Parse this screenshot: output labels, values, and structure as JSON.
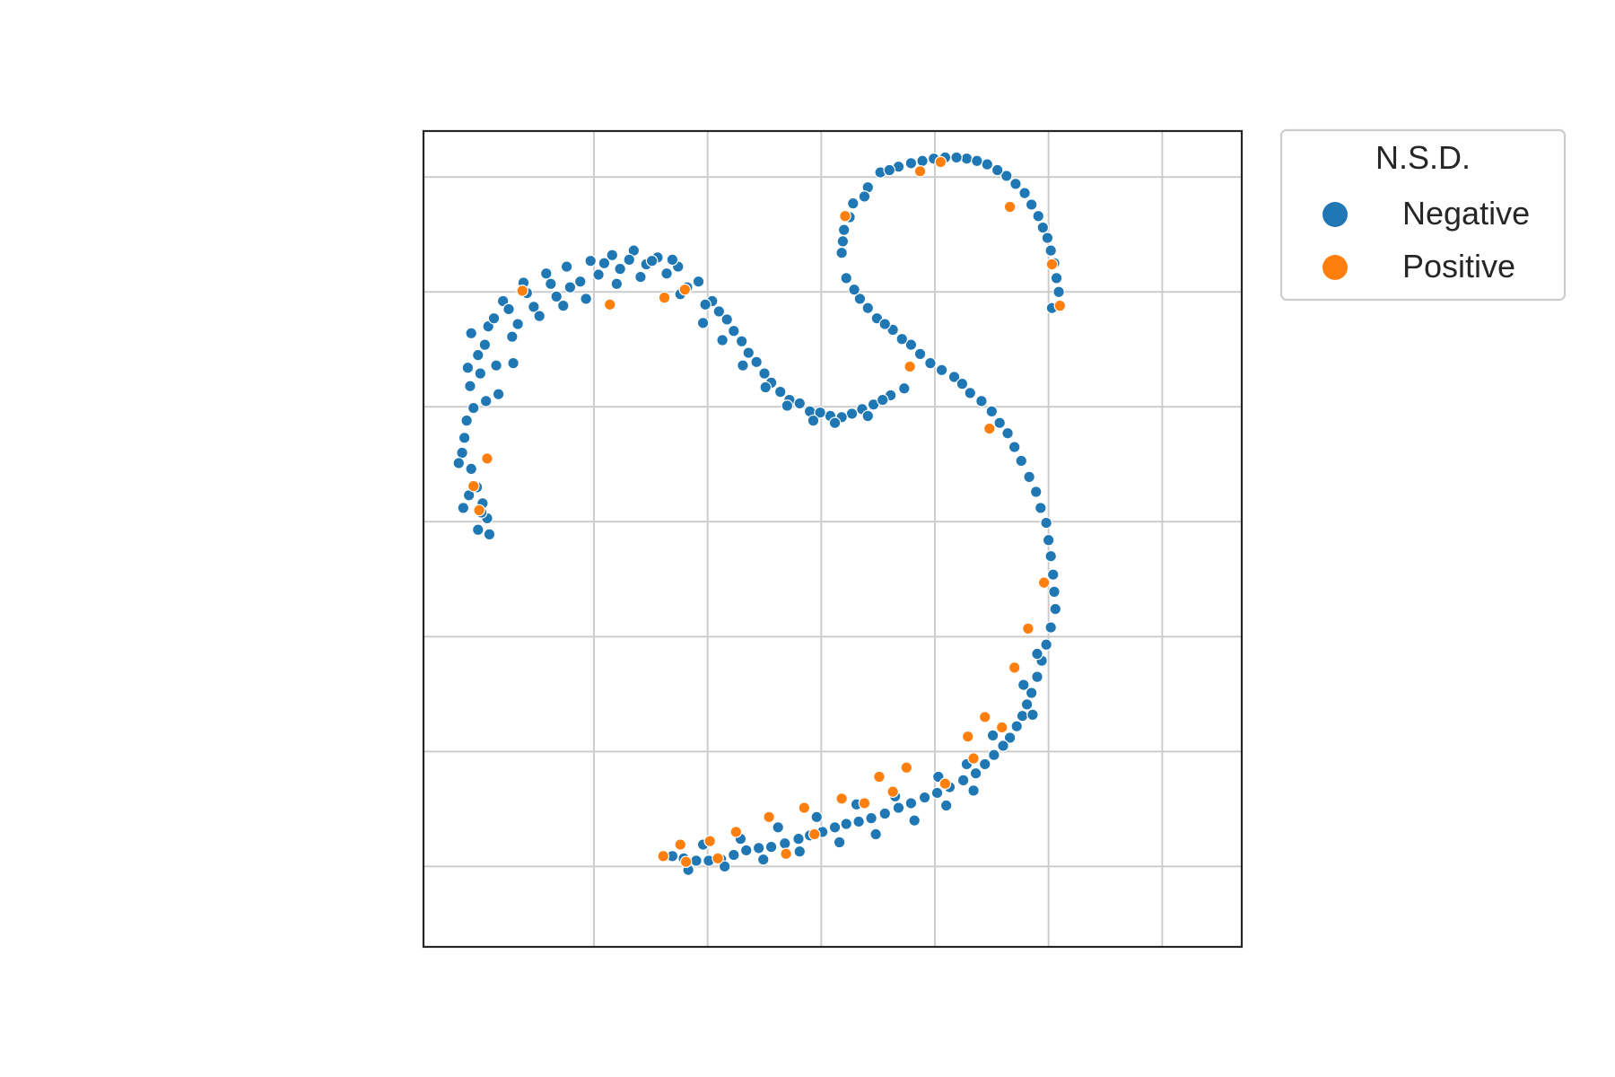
{
  "chart_data": {
    "type": "scatter",
    "title": "",
    "xlabel": "",
    "ylabel": "",
    "xlim": [
      -35,
      37
    ],
    "ylim": [
      -37,
      34
    ],
    "grid": true,
    "axis_tick_labels": false,
    "legend": {
      "title": "N.S.D.",
      "placement": "outside-top-right",
      "entries": [
        {
          "label": "Negative",
          "color": "#1f77b4"
        },
        {
          "label": "Positive",
          "color": "#ff7f0e"
        }
      ]
    },
    "series": [
      {
        "name": "Negative",
        "color": "#1f77b4",
        "points": [
          [
            -31.6,
            6.0
          ],
          [
            -31.2,
            8.8
          ],
          [
            -30.9,
            11.8
          ],
          [
            -30.2,
            14.5
          ],
          [
            -29.3,
            17.0
          ],
          [
            -28.0,
            19.2
          ],
          [
            -26.2,
            20.8
          ],
          [
            -24.2,
            21.6
          ],
          [
            -22.4,
            22.2
          ],
          [
            -20.3,
            22.7
          ],
          [
            -18.4,
            23.2
          ],
          [
            -16.5,
            23.6
          ],
          [
            -14.4,
            23.0
          ],
          [
            -12.6,
            22.2
          ],
          [
            -10.8,
            20.9
          ],
          [
            -9.6,
            19.2
          ],
          [
            -8.3,
            17.6
          ],
          [
            -7.0,
            15.7
          ],
          [
            -5.7,
            13.9
          ],
          [
            -4.4,
            12.1
          ],
          [
            -2.8,
            10.6
          ],
          [
            -1.0,
            9.6
          ],
          [
            0.8,
            9.2
          ],
          [
            2.7,
            9.4
          ],
          [
            4.6,
            10.2
          ],
          [
            6.1,
            11.0
          ],
          [
            7.3,
            11.6
          ],
          [
            -30.8,
            4.6
          ],
          [
            -30.3,
            3.0
          ],
          [
            -29.8,
            1.6
          ],
          [
            -29.4,
            0.3
          ],
          [
            -29.2,
            -1.1
          ],
          [
            -28.8,
            17.7
          ],
          [
            -27.5,
            18.5
          ],
          [
            -25.9,
            19.9
          ],
          [
            -23.8,
            20.7
          ],
          [
            -22.1,
            20.4
          ],
          [
            -19.6,
            21.5
          ],
          [
            -17.7,
            22.0
          ],
          [
            -15.4,
            22.4
          ],
          [
            -13.6,
            21.6
          ],
          [
            -11.8,
            20.4
          ],
          [
            -10.2,
            18.9
          ],
          [
            -9.0,
            18.3
          ],
          [
            -7.7,
            16.6
          ],
          [
            -6.4,
            14.7
          ],
          [
            -5.0,
            12.9
          ],
          [
            -3.6,
            11.3
          ],
          [
            -1.9,
            10.3
          ],
          [
            -0.1,
            9.5
          ],
          [
            1.8,
            9.1
          ],
          [
            3.6,
            9.8
          ],
          [
            5.4,
            10.6
          ],
          [
            -31.4,
            7.3
          ],
          [
            -30.6,
            9.9
          ],
          [
            -30.0,
            12.9
          ],
          [
            -29.6,
            15.4
          ],
          [
            -31.9,
            5.1
          ],
          [
            -31.0,
            2.3
          ],
          [
            -29.9,
            0.8
          ],
          [
            -28.6,
            13.6
          ],
          [
            -27.2,
            16.1
          ],
          [
            -25.3,
            18.7
          ],
          [
            -23.3,
            19.6
          ],
          [
            -21.2,
            20.9
          ],
          [
            -19.1,
            22.5
          ],
          [
            -16.9,
            22.8
          ],
          [
            -14.9,
            22.7
          ],
          [
            -13.1,
            22.8
          ],
          [
            5.2,
            30.4
          ],
          [
            4.1,
            29.1
          ],
          [
            2.8,
            27.7
          ],
          [
            2.0,
            25.4
          ],
          [
            1.8,
            23.4
          ],
          [
            2.2,
            21.2
          ],
          [
            3.4,
            19.4
          ],
          [
            4.9,
            17.7
          ],
          [
            6.3,
            16.7
          ],
          [
            7.9,
            15.4
          ],
          [
            9.6,
            13.8
          ],
          [
            11.7,
            12.6
          ],
          [
            13.1,
            11.2
          ],
          [
            15.0,
            9.6
          ],
          [
            16.4,
            7.7
          ],
          [
            17.6,
            5.3
          ],
          [
            18.9,
            2.6
          ],
          [
            19.8,
            -0.1
          ],
          [
            20.2,
            -3.0
          ],
          [
            20.5,
            -6.1
          ],
          [
            20.2,
            -9.2
          ],
          [
            19.4,
            -12.1
          ],
          [
            18.5,
            -14.9
          ],
          [
            17.7,
            -16.9
          ],
          [
            16.6,
            -18.8
          ],
          [
            15.2,
            -20.3
          ],
          [
            13.6,
            -21.9
          ],
          [
            11.3,
            -23.1
          ],
          [
            9.1,
            -24.0
          ],
          [
            6.8,
            -24.9
          ],
          [
            4.4,
            -25.8
          ],
          [
            2.2,
            -26.3
          ],
          [
            0.1,
            -27.0
          ],
          [
            -2.0,
            -27.6
          ],
          [
            -4.4,
            -28.3
          ],
          [
            -6.6,
            -28.6
          ],
          [
            -8.8,
            -29.4
          ],
          [
            -11.0,
            -29.5
          ],
          [
            -13.1,
            -29.1
          ],
          [
            6.8,
            30.9
          ],
          [
            8.9,
            31.4
          ],
          [
            10.9,
            31.7
          ],
          [
            12.8,
            31.6
          ],
          [
            14.6,
            31.1
          ],
          [
            16.3,
            30.1
          ],
          [
            17.9,
            28.6
          ],
          [
            19.1,
            26.6
          ],
          [
            19.9,
            24.7
          ],
          [
            20.5,
            22.5
          ],
          [
            20.9,
            20.0
          ],
          [
            20.3,
            18.6
          ],
          [
            3.8,
            28.3
          ],
          [
            2.5,
            26.5
          ],
          [
            1.9,
            24.4
          ],
          [
            2.9,
            20.2
          ],
          [
            4.1,
            18.6
          ],
          [
            5.6,
            17.2
          ],
          [
            7.1,
            15.9
          ],
          [
            8.7,
            14.6
          ],
          [
            10.6,
            13.2
          ],
          [
            12.4,
            12.0
          ],
          [
            14.1,
            10.5
          ],
          [
            15.7,
            8.6
          ],
          [
            17.0,
            6.5
          ],
          [
            18.3,
            3.9
          ],
          [
            19.3,
            1.2
          ],
          [
            20.0,
            -1.6
          ],
          [
            20.4,
            -4.6
          ],
          [
            20.6,
            -7.6
          ],
          [
            19.8,
            -10.7
          ],
          [
            19.0,
            -13.5
          ],
          [
            18.1,
            -15.9
          ],
          [
            17.2,
            -17.8
          ],
          [
            16.0,
            -19.5
          ],
          [
            14.4,
            -21.1
          ],
          [
            12.5,
            -22.5
          ],
          [
            10.2,
            -23.6
          ],
          [
            7.9,
            -24.5
          ],
          [
            5.6,
            -25.4
          ],
          [
            3.3,
            -26.1
          ],
          [
            1.2,
            -26.6
          ],
          [
            -1.0,
            -27.3
          ],
          [
            -3.2,
            -28.0
          ],
          [
            -5.5,
            -28.4
          ],
          [
            -7.7,
            -29.0
          ],
          [
            -9.9,
            -29.5
          ],
          [
            -12.1,
            -29.3
          ],
          [
            6.0,
            30.6
          ],
          [
            7.9,
            31.2
          ],
          [
            9.9,
            31.6
          ],
          [
            11.9,
            31.7
          ],
          [
            13.7,
            31.4
          ],
          [
            15.5,
            30.6
          ],
          [
            17.1,
            29.4
          ],
          [
            18.5,
            27.6
          ],
          [
            19.5,
            25.6
          ],
          [
            20.2,
            23.6
          ],
          [
            20.7,
            21.2
          ],
          [
            10.3,
            -22.2
          ],
          [
            12.8,
            -21.1
          ],
          [
            6.5,
            -23.9
          ],
          [
            3.1,
            -24.6
          ],
          [
            -0.4,
            -25.7
          ],
          [
            -3.8,
            -26.6
          ],
          [
            -7.1,
            -27.6
          ],
          [
            -10.4,
            -28.1
          ],
          [
            15.1,
            -18.6
          ],
          [
            17.8,
            -14.2
          ],
          [
            19.0,
            -11.5
          ],
          [
            18.6,
            -16.8
          ],
          [
            8.2,
            -26.0
          ],
          [
            4.8,
            -27.2
          ],
          [
            1.6,
            -27.9
          ],
          [
            -1.9,
            -28.7
          ],
          [
            -5.1,
            -29.4
          ],
          [
            -8.5,
            -30.0
          ],
          [
            -11.7,
            -30.3
          ],
          [
            13.4,
            -23.4
          ],
          [
            11.0,
            -24.7
          ],
          [
            -28.4,
            11.1
          ],
          [
            -27.1,
            13.8
          ],
          [
            -26.7,
            17.2
          ],
          [
            -24.8,
            17.9
          ],
          [
            -22.7,
            18.8
          ],
          [
            -20.7,
            19.4
          ],
          [
            -18.0,
            20.7
          ],
          [
            -15.9,
            21.3
          ],
          [
            -12.4,
            19.8
          ],
          [
            -10.4,
            17.3
          ],
          [
            -8.7,
            15.8
          ],
          [
            -6.9,
            13.6
          ],
          [
            -4.9,
            11.7
          ],
          [
            -3.0,
            10.1
          ],
          [
            -0.7,
            8.8
          ],
          [
            1.2,
            8.6
          ],
          [
            4.1,
            9.2
          ],
          [
            -31.5,
            1.2
          ],
          [
            -30.2,
            -0.7
          ],
          [
            -29.5,
            10.5
          ],
          [
            -30.8,
            16.4
          ],
          [
            -31.1,
            13.4
          ]
        ]
      },
      {
        "name": "Positive",
        "color": "#ff7f0e",
        "points": [
          [
            -26.3,
            20.1
          ],
          [
            -12.0,
            20.2
          ],
          [
            -18.6,
            18.9
          ],
          [
            -13.8,
            19.5
          ],
          [
            -30.1,
            1.0
          ],
          [
            -30.6,
            3.1
          ],
          [
            -29.4,
            5.5
          ],
          [
            2.1,
            26.6
          ],
          [
            8.7,
            30.5
          ],
          [
            10.5,
            31.3
          ],
          [
            16.6,
            27.4
          ],
          [
            20.3,
            22.4
          ],
          [
            21.0,
            18.8
          ],
          [
            7.8,
            13.5
          ],
          [
            14.8,
            8.1
          ],
          [
            19.6,
            -5.3
          ],
          [
            18.2,
            -9.3
          ],
          [
            17.0,
            -12.7
          ],
          [
            14.4,
            -17.0
          ],
          [
            15.9,
            -17.9
          ],
          [
            12.9,
            -18.7
          ],
          [
            13.4,
            -20.6
          ],
          [
            7.5,
            -21.4
          ],
          [
            5.1,
            -22.2
          ],
          [
            6.3,
            -23.5
          ],
          [
            1.8,
            -24.1
          ],
          [
            3.8,
            -24.5
          ],
          [
            -1.5,
            -24.9
          ],
          [
            -4.6,
            -25.7
          ],
          [
            -7.5,
            -27.0
          ],
          [
            -9.8,
            -27.8
          ],
          [
            -12.4,
            -28.1
          ],
          [
            -13.9,
            -29.1
          ],
          [
            -11.9,
            -29.6
          ],
          [
            -3.1,
            -28.9
          ],
          [
            -0.6,
            -27.2
          ],
          [
            10.9,
            -22.8
          ],
          [
            -9.1,
            -29.3
          ]
        ]
      }
    ]
  }
}
